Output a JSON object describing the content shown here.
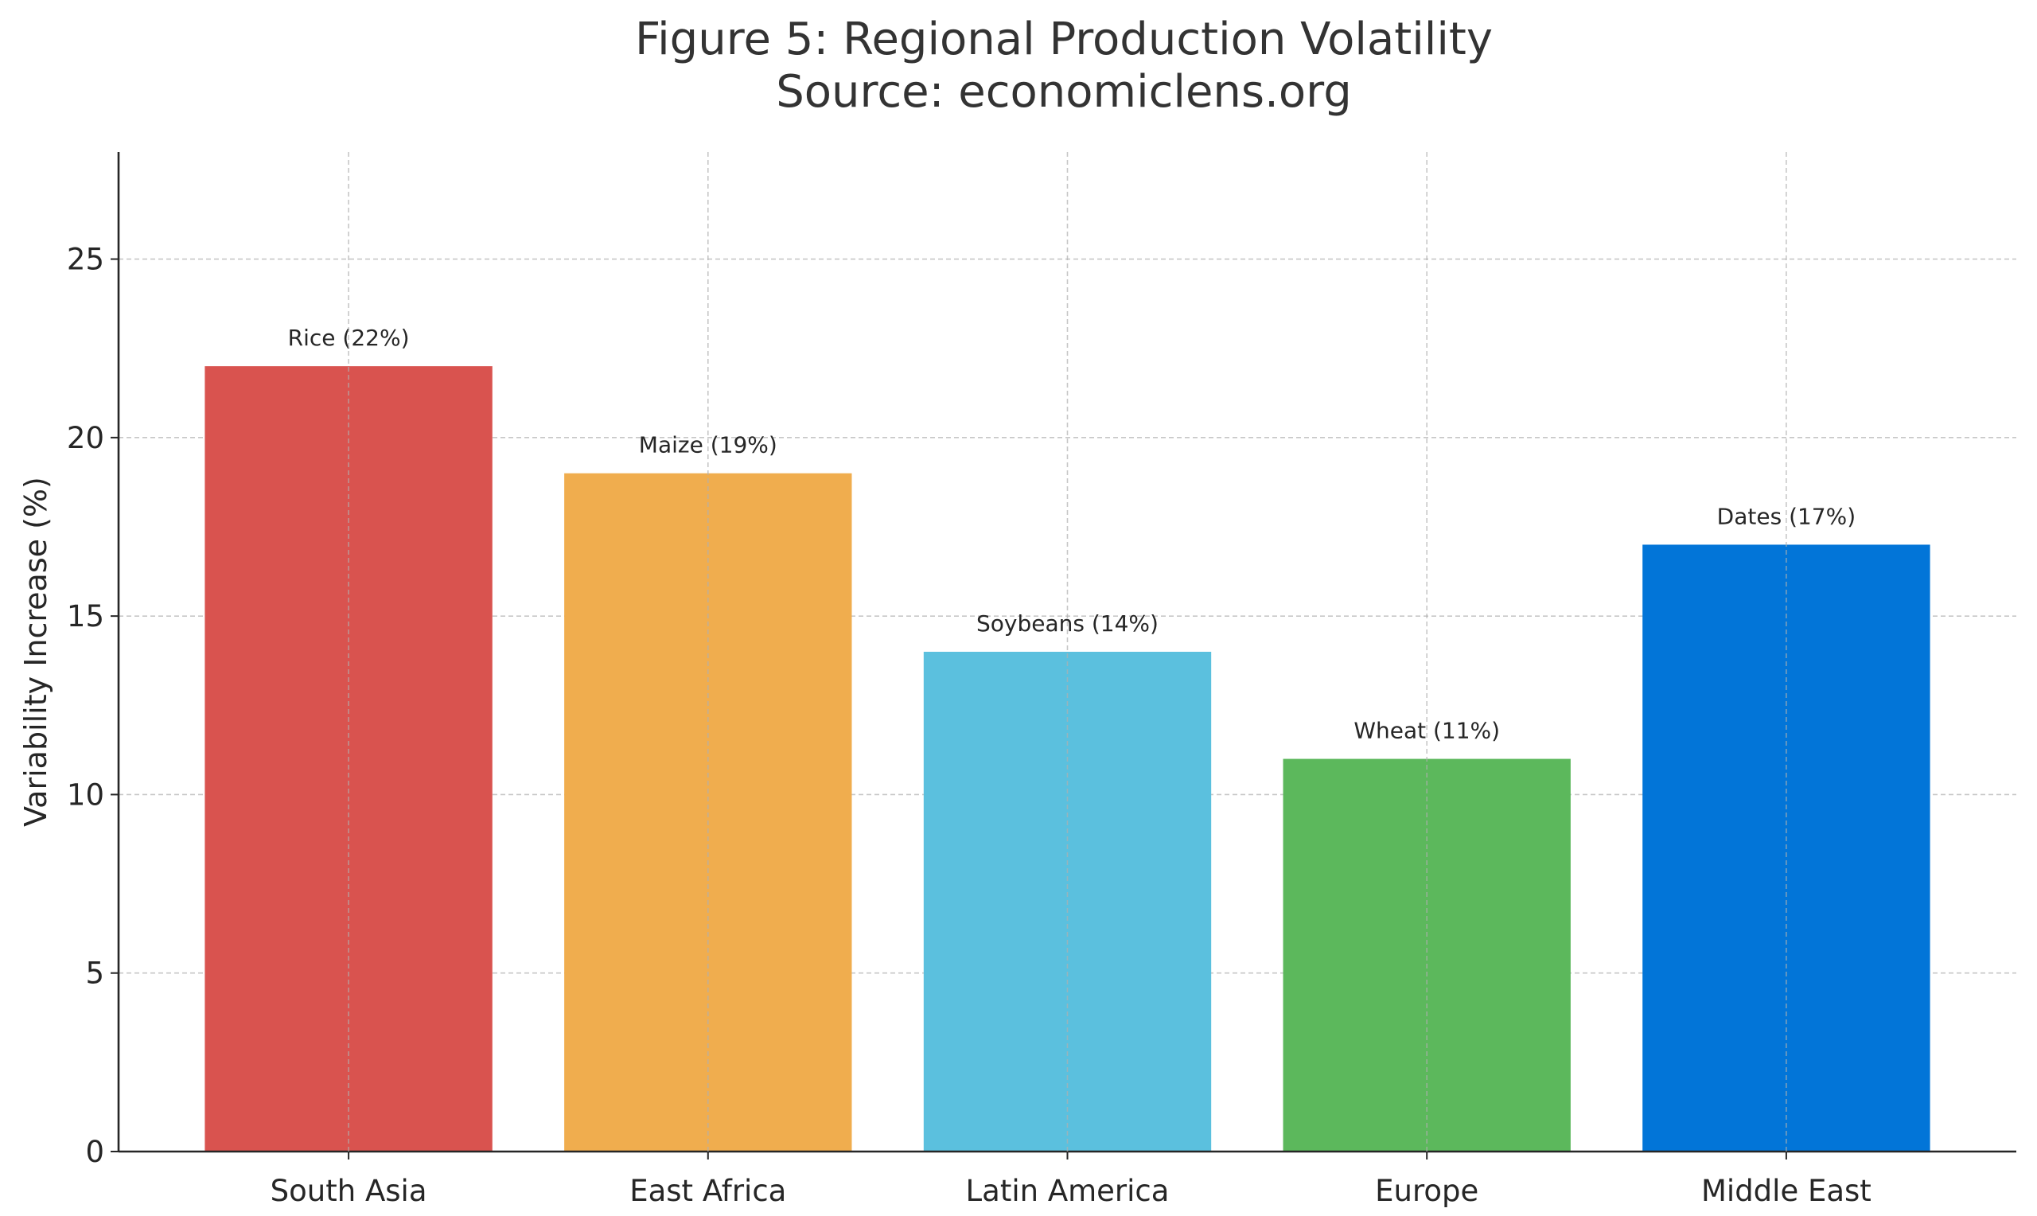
{
  "chart_data": {
    "type": "bar",
    "title": "Figure 5: Regional Production Volatility",
    "subtitle": "Source: economiclens.org",
    "xlabel": "",
    "ylabel": "Variability Increase (%)",
    "categories": [
      "South Asia",
      "East Africa",
      "Latin America",
      "Europe",
      "Middle East"
    ],
    "values": [
      22,
      19,
      14,
      11,
      17
    ],
    "bar_labels": [
      "Rice (22%)",
      "Maize (19%)",
      "Soybeans (14%)",
      "Wheat (11%)",
      "Dates (17%)"
    ],
    "colors": [
      "#d9534f",
      "#f0ad4e",
      "#5bc0de",
      "#5cb85c",
      "#0275d8"
    ],
    "ylim": [
      0,
      28
    ],
    "yticks": [
      0,
      5,
      10,
      15,
      20,
      25
    ],
    "grid": true,
    "legend": "none"
  }
}
